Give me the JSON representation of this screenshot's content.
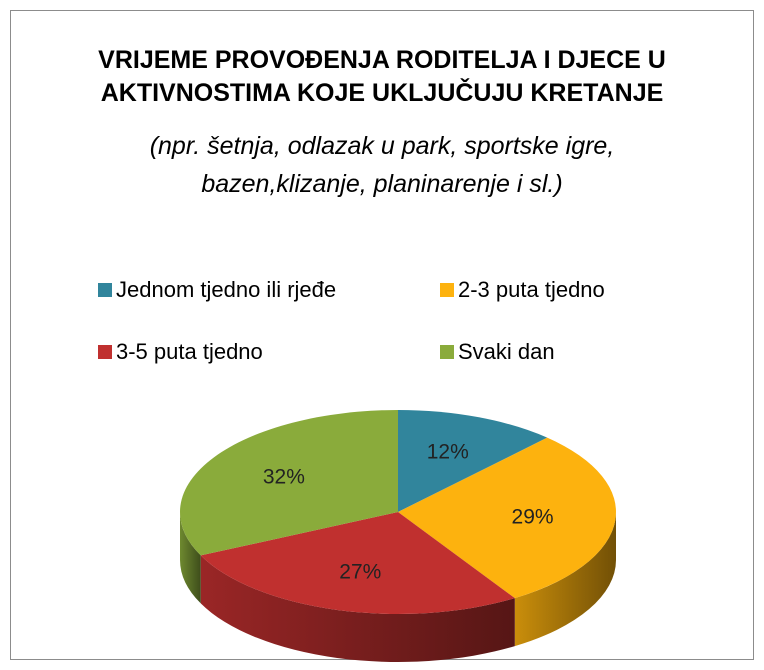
{
  "chart_data": {
    "type": "pie3d",
    "title": "VRIJEME PROVOĐENJA RODITELJA I DJECE U AKTIVNOSTIMA KOJE UKLJUČUJU KRETANJE",
    "subtitle": "(npr. šetnja, odlazak u park, sportske igre, bazen,klizanje, planinarenje i sl.)",
    "categories": [
      "Jednom tjedno ili rjeđe",
      "2-3 puta tjedno",
      "3-5 puta tjedno",
      "Svaki dan"
    ],
    "values": [
      12,
      29,
      27,
      32
    ],
    "value_labels": [
      "12%",
      "29%",
      "27%",
      "32%"
    ],
    "colors": [
      "#31859c",
      "#fdb20e",
      "#c0302f",
      "#8aab3b"
    ],
    "legend": "top"
  }
}
